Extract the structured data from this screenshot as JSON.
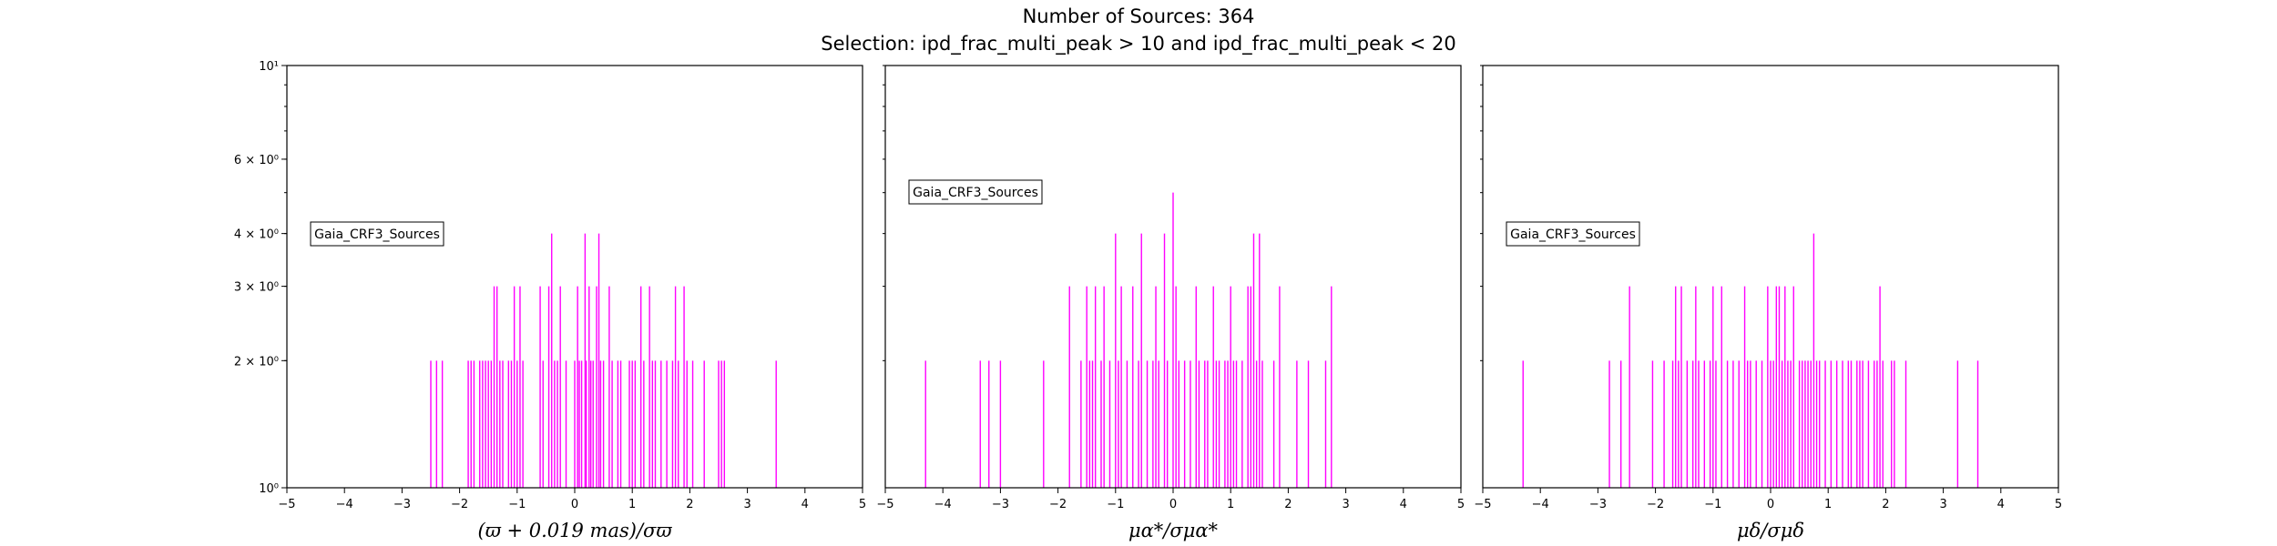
{
  "title_line1": "Number of Sources: 364",
  "title_line2": "Selection: ipd_frac_multi_peak > 10 and ipd_frac_multi_peak < 20",
  "chart_data": [
    {
      "type": "bar",
      "histogram": true,
      "color": "#ff00ff",
      "legend": "Gaia_CRF3_Sources",
      "legend_position": "left",
      "xlabel": "(ϖ + 0.019 mas)/σϖ",
      "xlim": [
        -5,
        5
      ],
      "yscale": "log",
      "ylim": [
        1,
        10
      ],
      "xticks": [
        "−5",
        "−4",
        "−3",
        "−2",
        "−1",
        "0",
        "1",
        "2",
        "3",
        "4",
        "5"
      ],
      "yticks": [
        "10¹",
        "6 × 10⁰",
        "4 × 10⁰",
        "3 × 10⁰",
        "2 × 10⁰",
        "10⁰"
      ],
      "x": [
        -2.5,
        -2.4,
        -2.3,
        -1.85,
        -1.8,
        -1.75,
        -1.65,
        -1.6,
        -1.55,
        -1.5,
        -1.45,
        -1.4,
        -1.35,
        -1.3,
        -1.25,
        -1.15,
        -1.1,
        -1.05,
        -1.0,
        -0.95,
        -0.9,
        -0.6,
        -0.55,
        -0.45,
        -0.4,
        -0.35,
        -0.3,
        -0.25,
        -0.15,
        0.0,
        0.05,
        0.08,
        0.12,
        0.18,
        0.2,
        0.25,
        0.28,
        0.32,
        0.38,
        0.42,
        0.45,
        0.5,
        0.6,
        0.65,
        0.75,
        0.8,
        0.95,
        1.0,
        1.05,
        1.15,
        1.2,
        1.3,
        1.35,
        1.4,
        1.5,
        1.6,
        1.7,
        1.75,
        1.8,
        1.9,
        1.95,
        2.05,
        2.25,
        2.5,
        2.55,
        2.6,
        3.5
      ],
      "values": [
        2,
        2,
        2,
        2,
        2,
        2,
        2,
        2,
        2,
        2,
        2,
        3,
        3,
        2,
        2,
        2,
        2,
        3,
        2,
        3,
        2,
        3,
        2,
        3,
        4,
        2,
        2,
        3,
        2,
        2,
        3,
        2,
        2,
        4,
        2,
        3,
        2,
        2,
        3,
        4,
        2,
        2,
        3,
        2,
        2,
        2,
        2,
        2,
        2,
        3,
        2,
        3,
        2,
        2,
        2,
        2,
        2,
        3,
        2,
        3,
        2,
        2,
        2,
        2,
        2,
        2,
        2
      ]
    },
    {
      "type": "bar",
      "histogram": true,
      "color": "#ff00ff",
      "legend": "Gaia_CRF3_Sources",
      "legend_position": "upper left",
      "xlabel": "μα*/σμα*",
      "xlim": [
        -5,
        5
      ],
      "yscale": "log",
      "ylim": [
        1,
        10
      ],
      "xticks": [
        "−5",
        "−4",
        "−3",
        "−2",
        "−1",
        "0",
        "1",
        "2",
        "3",
        "4",
        "5"
      ],
      "yticks": [
        "10¹",
        "6 × 10⁰",
        "4 × 10⁰",
        "3 × 10⁰",
        "2 × 10⁰",
        "10⁰"
      ],
      "x": [
        -4.3,
        -3.35,
        -3.2,
        -3.0,
        -2.25,
        -1.8,
        -1.6,
        -1.5,
        -1.45,
        -1.4,
        -1.35,
        -1.25,
        -1.2,
        -1.1,
        -1.0,
        -0.95,
        -0.9,
        -0.8,
        -0.7,
        -0.6,
        -0.55,
        -0.45,
        -0.35,
        -0.3,
        -0.25,
        -0.15,
        -0.1,
        0.0,
        0.05,
        0.1,
        0.2,
        0.3,
        0.4,
        0.45,
        0.55,
        0.6,
        0.7,
        0.75,
        0.8,
        0.9,
        0.95,
        1.0,
        1.05,
        1.1,
        1.2,
        1.3,
        1.35,
        1.4,
        1.45,
        1.5,
        1.55,
        1.75,
        1.85,
        2.15,
        2.35,
        2.65,
        2.75
      ],
      "values": [
        2,
        2,
        2,
        2,
        2,
        3,
        2,
        3,
        2,
        2,
        3,
        2,
        3,
        2,
        4,
        2,
        3,
        2,
        3,
        2,
        4,
        2,
        2,
        3,
        2,
        4,
        2,
        5,
        3,
        2,
        2,
        2,
        3,
        2,
        2,
        2,
        3,
        2,
        2,
        2,
        2,
        3,
        2,
        2,
        2,
        3,
        3,
        4,
        2,
        4,
        2,
        2,
        3,
        2,
        2,
        2,
        3
      ]
    },
    {
      "type": "bar",
      "histogram": true,
      "color": "#ff00ff",
      "legend": "Gaia_CRF3_Sources",
      "legend_position": "left",
      "xlabel": "μδ/σμδ",
      "xlim": [
        -5,
        5
      ],
      "yscale": "log",
      "ylim": [
        1,
        10
      ],
      "xticks": [
        "−5",
        "−4",
        "−3",
        "−2",
        "−1",
        "0",
        "1",
        "2",
        "3",
        "4",
        "5"
      ],
      "yticks": [],
      "x": [
        -4.3,
        -2.8,
        -2.6,
        -2.45,
        -2.05,
        -1.85,
        -1.7,
        -1.65,
        -1.6,
        -1.55,
        -1.45,
        -1.35,
        -1.3,
        -1.25,
        -1.15,
        -1.05,
        -1.0,
        -0.95,
        -0.85,
        -0.75,
        -0.65,
        -0.55,
        -0.45,
        -0.4,
        -0.35,
        -0.25,
        -0.15,
        -0.05,
        0.0,
        0.05,
        0.1,
        0.15,
        0.2,
        0.25,
        0.3,
        0.35,
        0.4,
        0.5,
        0.55,
        0.6,
        0.65,
        0.7,
        0.75,
        0.8,
        0.85,
        0.95,
        1.05,
        1.15,
        1.25,
        1.35,
        1.4,
        1.5,
        1.55,
        1.6,
        1.7,
        1.8,
        1.85,
        1.9,
        1.95,
        2.1,
        2.15,
        2.35,
        3.25,
        3.6
      ],
      "values": [
        2,
        2,
        2,
        3,
        2,
        2,
        2,
        3,
        2,
        3,
        2,
        2,
        3,
        2,
        2,
        2,
        3,
        2,
        3,
        2,
        2,
        2,
        3,
        2,
        2,
        2,
        2,
        3,
        2,
        2,
        3,
        3,
        2,
        3,
        2,
        2,
        3,
        2,
        2,
        2,
        2,
        2,
        4,
        2,
        2,
        2,
        2,
        2,
        2,
        2,
        2,
        2,
        2,
        2,
        2,
        2,
        2,
        3,
        2,
        2,
        2,
        2,
        2,
        2
      ]
    }
  ]
}
